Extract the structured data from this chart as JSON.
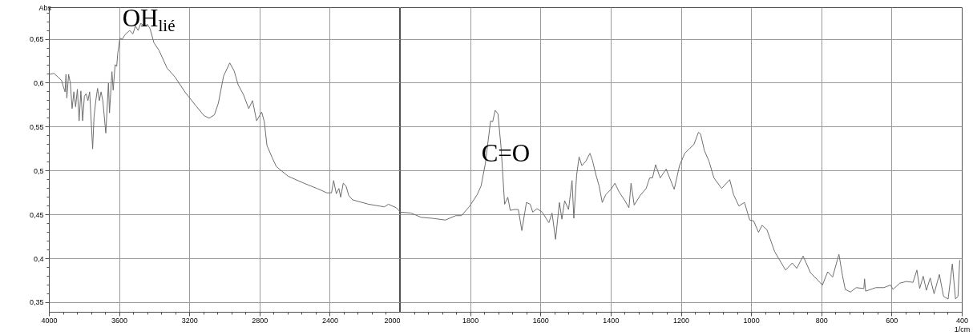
{
  "chart_data": [
    {
      "type": "line",
      "ylabel": "Abs",
      "grid": true,
      "line_style": "solid",
      "xlim": [
        4000,
        2000
      ],
      "ylim": [
        0.339,
        0.686
      ],
      "xticks": [
        4000,
        {
          "value": 3920,
          "label": null
        },
        {
          "value": 3840,
          "label": null
        },
        {
          "value": 3760,
          "label": null
        },
        {
          "value": 3680,
          "label": null
        },
        3600,
        {
          "value": 3520,
          "label": null
        },
        {
          "value": 3440,
          "label": null
        },
        {
          "value": 3360,
          "label": null
        },
        {
          "value": 3280,
          "label": null
        },
        3200,
        {
          "value": 3120,
          "label": null
        },
        {
          "value": 3040,
          "label": null
        },
        {
          "value": 2960,
          "label": null
        },
        {
          "value": 2880,
          "label": null
        },
        2800,
        {
          "value": 2720,
          "label": null
        },
        {
          "value": 2640,
          "label": null
        },
        {
          "value": 2560,
          "label": null
        },
        {
          "value": 2480,
          "label": null
        },
        2400,
        {
          "value": 2320,
          "label": null
        },
        {
          "value": 2240,
          "label": null
        },
        {
          "value": 2160,
          "label": null
        },
        {
          "value": 2080,
          "label": null
        },
        2000
      ],
      "yticks": [
        {
          "value": 0.35,
          "label": "0,35"
        },
        {
          "value": 0.36,
          "label": null
        },
        {
          "value": 0.37,
          "label": null
        },
        {
          "value": 0.38,
          "label": null
        },
        {
          "value": 0.39,
          "label": null
        },
        {
          "value": 0.4,
          "label": "0,4"
        },
        {
          "value": 0.41,
          "label": null
        },
        {
          "value": 0.42,
          "label": null
        },
        {
          "value": 0.43,
          "label": null
        },
        {
          "value": 0.44,
          "label": null
        },
        {
          "value": 0.45,
          "label": "0,45"
        },
        {
          "value": 0.46,
          "label": null
        },
        {
          "value": 0.47,
          "label": null
        },
        {
          "value": 0.48,
          "label": null
        },
        {
          "value": 0.49,
          "label": null
        },
        {
          "value": 0.5,
          "label": "0,5"
        },
        {
          "value": 0.51,
          "label": null
        },
        {
          "value": 0.52,
          "label": null
        },
        {
          "value": 0.53,
          "label": null
        },
        {
          "value": 0.54,
          "label": null
        },
        {
          "value": 0.55,
          "label": "0,55"
        },
        {
          "value": 0.56,
          "label": null
        },
        {
          "value": 0.57,
          "label": null
        },
        {
          "value": 0.58,
          "label": null
        },
        {
          "value": 0.59,
          "label": null
        },
        {
          "value": 0.6,
          "label": "0,6"
        },
        {
          "value": 0.61,
          "label": null
        },
        {
          "value": 0.62,
          "label": null
        },
        {
          "value": 0.63,
          "label": null
        },
        {
          "value": 0.64,
          "label": null
        },
        {
          "value": 0.65,
          "label": "0,65"
        },
        {
          "value": 0.66,
          "label": null
        },
        {
          "value": 0.67,
          "label": null
        },
        {
          "value": 0.68,
          "label": null
        }
      ],
      "annotations": [
        "OH$_{lié}$"
      ],
      "x": [
        4000,
        3973,
        3951,
        3930,
        3920,
        3910,
        3905,
        3900,
        3890,
        3880,
        3870,
        3860,
        3850,
        3840,
        3830,
        3820,
        3810,
        3800,
        3790,
        3780,
        3770,
        3753,
        3745,
        3735,
        3725,
        3715,
        3705,
        3695,
        3678,
        3663,
        3657,
        3643,
        3636,
        3625,
        3616,
        3610,
        3604,
        3598,
        3584,
        3569,
        3542,
        3524,
        3509,
        3494,
        3479,
        3456,
        3441,
        3426,
        3404,
        3374,
        3329,
        3284,
        3224,
        3164,
        3119,
        3089,
        3059,
        3037,
        3007,
        2972,
        2947,
        2924,
        2894,
        2864,
        2842,
        2819,
        2790,
        2775,
        2760,
        2730,
        2707,
        2640,
        2550,
        2475,
        2419,
        2392,
        2380,
        2365,
        2350,
        2340,
        2325,
        2310,
        2294,
        2272,
        2181,
        2091,
        2068,
        2023,
        2000
      ],
      "series": [
        {
          "color": "#6e6e6e",
          "values": [
            0.61,
            0.611,
            0.607,
            0.603,
            0.596,
            0.59,
            0.61,
            0.583,
            0.61,
            0.6,
            0.571,
            0.59,
            0.573,
            0.593,
            0.557,
            0.591,
            0.557,
            0.585,
            0.588,
            0.58,
            0.59,
            0.525,
            0.562,
            0.58,
            0.594,
            0.58,
            0.59,
            0.58,
            0.543,
            0.6,
            0.566,
            0.613,
            0.592,
            0.621,
            0.619,
            0.634,
            0.642,
            0.651,
            0.65,
            0.655,
            0.66,
            0.656,
            0.665,
            0.66,
            0.668,
            0.665,
            0.667,
            0.662,
            0.646,
            0.637,
            0.617,
            0.607,
            0.589,
            0.574,
            0.563,
            0.56,
            0.564,
            0.577,
            0.608,
            0.623,
            0.614,
            0.598,
            0.587,
            0.571,
            0.58,
            0.557,
            0.567,
            0.556,
            0.529,
            0.515,
            0.505,
            0.494,
            0.486,
            0.48,
            0.475,
            0.475,
            0.489,
            0.474,
            0.48,
            0.47,
            0.486,
            0.483,
            0.472,
            0.467,
            0.462,
            0.459,
            0.462,
            0.458,
            0.453
          ]
        }
      ]
    },
    {
      "type": "line",
      "xlabel": "1/cm",
      "grid": true,
      "line_style": "solid",
      "tick_labels": "x",
      "xlim": [
        2000,
        400
      ],
      "ylim": [
        0.339,
        0.686
      ],
      "xticks": [
        {
          "value": 1960,
          "label": null
        },
        {
          "value": 1920,
          "label": null
        },
        {
          "value": 1880,
          "label": null
        },
        {
          "value": 1840,
          "label": null
        },
        1800,
        {
          "value": 1760,
          "label": null
        },
        {
          "value": 1720,
          "label": null
        },
        {
          "value": 1680,
          "label": null
        },
        {
          "value": 1640,
          "label": null
        },
        1600,
        {
          "value": 1560,
          "label": null
        },
        {
          "value": 1520,
          "label": null
        },
        {
          "value": 1480,
          "label": null
        },
        {
          "value": 1440,
          "label": null
        },
        1400,
        {
          "value": 1360,
          "label": null
        },
        {
          "value": 1320,
          "label": null
        },
        {
          "value": 1280,
          "label": null
        },
        {
          "value": 1240,
          "label": null
        },
        1200,
        {
          "value": 1160,
          "label": null
        },
        {
          "value": 1120,
          "label": null
        },
        {
          "value": 1080,
          "label": null
        },
        {
          "value": 1040,
          "label": null
        },
        1000,
        {
          "value": 960,
          "label": null
        },
        {
          "value": 920,
          "label": null
        },
        {
          "value": 880,
          "label": null
        },
        {
          "value": 840,
          "label": null
        },
        800,
        {
          "value": 760,
          "label": null
        },
        {
          "value": 720,
          "label": null
        },
        {
          "value": 680,
          "label": null
        },
        {
          "value": 640,
          "label": null
        },
        600,
        {
          "value": 560,
          "label": null
        },
        {
          "value": 520,
          "label": null
        },
        {
          "value": 480,
          "label": null
        },
        {
          "value": 440,
          "label": null
        },
        400
      ],
      "yticks": [
        {
          "value": 0.35,
          "label": null
        },
        {
          "value": 0.4,
          "label": null
        },
        {
          "value": 0.45,
          "label": null
        },
        {
          "value": 0.5,
          "label": null
        },
        {
          "value": 0.55,
          "label": null
        },
        {
          "value": 0.6,
          "label": null
        },
        {
          "value": 0.65,
          "label": null
        }
      ],
      "annotations": [
        {
          "text": "C=O",
          "x": 1700,
          "y": 0.52
        }
      ],
      "x": [
        2000,
        1970,
        1940,
        1909,
        1872,
        1842,
        1826,
        1804,
        1781,
        1770,
        1758,
        1743,
        1737,
        1730,
        1722,
        1713,
        1703,
        1694,
        1687,
        1675,
        1664,
        1654,
        1641,
        1630,
        1623,
        1611,
        1596,
        1577,
        1568,
        1558,
        1547,
        1540,
        1532,
        1521,
        1511,
        1506,
        1498,
        1491,
        1483,
        1472,
        1460,
        1453,
        1442,
        1434,
        1425,
        1415,
        1400,
        1389,
        1377,
        1362,
        1349,
        1343,
        1334,
        1317,
        1300,
        1290,
        1282,
        1273,
        1260,
        1243,
        1220,
        1205,
        1190,
        1175,
        1164,
        1151,
        1145,
        1134,
        1121,
        1107,
        1085,
        1062,
        1051,
        1036,
        1020,
        1005,
        994,
        980,
        970,
        956,
        934,
        903,
        884,
        871,
        853,
        832,
        798,
        783,
        769,
        751,
        741,
        733,
        718,
        702,
        680,
        678,
        675,
        646,
        623,
        604,
        597,
        578,
        559,
        540,
        529,
        521,
        511,
        502,
        491,
        480,
        465,
        453,
        440,
        428,
        419,
        412,
        407
      ],
      "series": [
        {
          "color": "#6e6e6e",
          "values": [
            0.453,
            0.452,
            0.447,
            0.446,
            0.444,
            0.449,
            0.449,
            0.459,
            0.473,
            0.483,
            0.508,
            0.557,
            0.556,
            0.569,
            0.565,
            0.526,
            0.462,
            0.47,
            0.455,
            0.456,
            0.456,
            0.432,
            0.464,
            0.462,
            0.453,
            0.457,
            0.453,
            0.441,
            0.452,
            0.422,
            0.464,
            0.445,
            0.466,
            0.456,
            0.489,
            0.446,
            0.495,
            0.516,
            0.506,
            0.511,
            0.52,
            0.512,
            0.494,
            0.483,
            0.464,
            0.473,
            0.479,
            0.486,
            0.476,
            0.467,
            0.458,
            0.486,
            0.461,
            0.472,
            0.48,
            0.492,
            0.492,
            0.507,
            0.492,
            0.502,
            0.479,
            0.506,
            0.52,
            0.526,
            0.53,
            0.544,
            0.542,
            0.523,
            0.511,
            0.492,
            0.48,
            0.49,
            0.473,
            0.46,
            0.464,
            0.444,
            0.443,
            0.43,
            0.438,
            0.433,
            0.408,
            0.387,
            0.395,
            0.389,
            0.403,
            0.384,
            0.37,
            0.385,
            0.379,
            0.405,
            0.381,
            0.365,
            0.362,
            0.367,
            0.366,
            0.377,
            0.363,
            0.367,
            0.367,
            0.37,
            0.365,
            0.372,
            0.374,
            0.373,
            0.387,
            0.366,
            0.38,
            0.364,
            0.378,
            0.36,
            0.382,
            0.357,
            0.354,
            0.394,
            0.354,
            0.357,
            0.398
          ]
        }
      ]
    }
  ]
}
